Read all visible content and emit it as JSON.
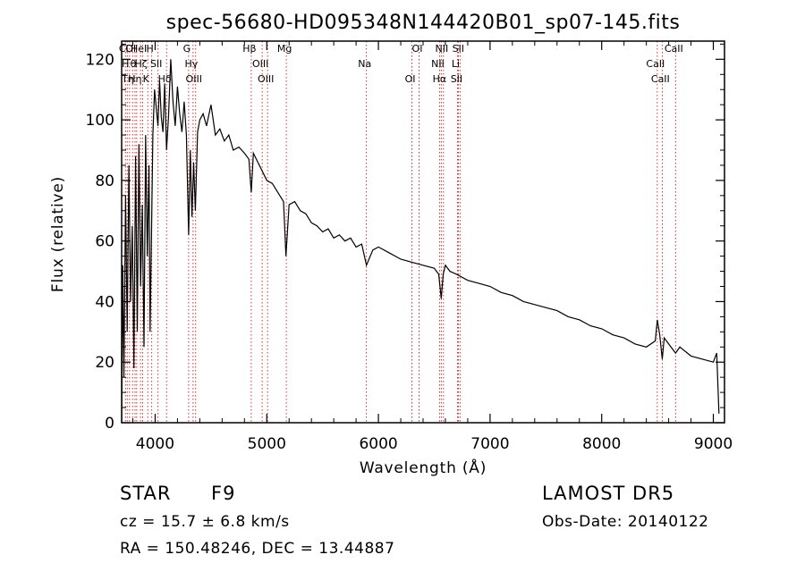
{
  "chart_data": {
    "type": "line",
    "title": "spec-56680-HD095348N144420B01_sp07-145.fits",
    "xlabel": "Wavelength (Å)",
    "ylabel": "Flux (relative)",
    "xlim": [
      3700,
      9100
    ],
    "ylim": [
      0,
      126
    ],
    "xticks": [
      4000,
      5000,
      6000,
      7000,
      8000,
      9000
    ],
    "yticks": [
      0,
      20,
      40,
      60,
      80,
      100,
      120
    ],
    "grid": false,
    "line_color": "#000000",
    "marker_color": "#cc0000",
    "series": [
      {
        "x": [
          3700,
          3710,
          3720,
          3735,
          3750,
          3765,
          3780,
          3795,
          3810,
          3825,
          3840,
          3855,
          3870,
          3885,
          3900,
          3915,
          3930,
          3945,
          3955,
          3968,
          3980,
          3995,
          4010,
          4025,
          4040,
          4055,
          4070,
          4085,
          4102,
          4120,
          4140,
          4160,
          4180,
          4200,
          4220,
          4240,
          4260,
          4280,
          4300,
          4315,
          4330,
          4345,
          4360,
          4380,
          4400,
          4430,
          4460,
          4500,
          4540,
          4580,
          4620,
          4660,
          4700,
          4750,
          4800,
          4840,
          4861,
          4880,
          4920,
          4960,
          5000,
          5050,
          5100,
          5150,
          5172,
          5200,
          5250,
          5300,
          5350,
          5400,
          5450,
          5500,
          5550,
          5600,
          5650,
          5700,
          5750,
          5800,
          5850,
          5893,
          5950,
          6000,
          6100,
          6200,
          6300,
          6400,
          6500,
          6540,
          6563,
          6580,
          6600,
          6640,
          6700,
          6800,
          6900,
          7000,
          7100,
          7200,
          7300,
          7400,
          7500,
          7600,
          7700,
          7800,
          7900,
          8000,
          8100,
          8200,
          8300,
          8400,
          8480,
          8498,
          8520,
          8542,
          8560,
          8600,
          8662,
          8700,
          8800,
          8900,
          9000,
          9030,
          9050
        ],
        "y": [
          0,
          52,
          15,
          75,
          30,
          85,
          40,
          65,
          18,
          88,
          30,
          92,
          45,
          72,
          25,
          95,
          55,
          85,
          30,
          65,
          95,
          110,
          104,
          98,
          113,
          101,
          96,
          112,
          90,
          101,
          120,
          106,
          98,
          111,
          102,
          96,
          106,
          95,
          62,
          90,
          68,
          86,
          70,
          96,
          100,
          102,
          98,
          105,
          95,
          97,
          93,
          95,
          90,
          91,
          89,
          87,
          76,
          89,
          86,
          83,
          80,
          79,
          76,
          73,
          55,
          72,
          73,
          70,
          69,
          66,
          65,
          63,
          64,
          61,
          62,
          60,
          61,
          58,
          59,
          52,
          57,
          58,
          56,
          54,
          53,
          52,
          51,
          49,
          41,
          49,
          52,
          50,
          49,
          47,
          46,
          45,
          43,
          42,
          40,
          39,
          38,
          37,
          35,
          34,
          32,
          31,
          29,
          28,
          26,
          25,
          27,
          34,
          29,
          21,
          28,
          26,
          23,
          25,
          22,
          21,
          20,
          23,
          3
        ]
      }
    ],
    "lines": [
      {
        "x": 3734,
        "label": "Cl"
      },
      {
        "x": 3750,
        "label": "H"
      },
      {
        "x": 3771,
        "label": "Tη"
      },
      {
        "x": 3798,
        "label": "OI"
      },
      {
        "x": 3820,
        "label": "θ"
      },
      {
        "x": 3835,
        "label": "Hη"
      },
      {
        "x": 3869,
        "label": "HeI"
      },
      {
        "x": 3889,
        "label": "Hζ"
      },
      {
        "x": 3934,
        "label": "K"
      },
      {
        "x": 3970,
        "label": "H"
      },
      {
        "x": 4026,
        "label": "SII"
      },
      {
        "x": 4102,
        "label": "Hδ"
      },
      {
        "x": 4300,
        "label": "G"
      },
      {
        "x": 4340,
        "label": "Hγ"
      },
      {
        "x": 4363,
        "label": "OIII"
      },
      {
        "x": 4861,
        "label": "Hβ"
      },
      {
        "x": 4959,
        "label": "OIII"
      },
      {
        "x": 5007,
        "label": "OIII"
      },
      {
        "x": 5175,
        "label": "Mg"
      },
      {
        "x": 5893,
        "label": "Na"
      },
      {
        "x": 6300,
        "label": "OI"
      },
      {
        "x": 6364,
        "label": "OI"
      },
      {
        "x": 6548,
        "label": "NII"
      },
      {
        "x": 6563,
        "label": "Hα"
      },
      {
        "x": 6583,
        "label": "NII"
      },
      {
        "x": 6708,
        "label": "Li"
      },
      {
        "x": 6716,
        "label": "SII"
      },
      {
        "x": 6731,
        "label": "SII"
      },
      {
        "x": 8498,
        "label": "CaII"
      },
      {
        "x": 8542,
        "label": "CaII"
      },
      {
        "x": 8662,
        "label": "CaII"
      }
    ]
  },
  "info": {
    "class": "STAR",
    "subclass": "F9",
    "survey": "LAMOST DR5",
    "cz": "cz = 15.7 ± 6.8 km/s",
    "obs_date": "Obs-Date: 20140122",
    "coords": "RA = 150.48246, DEC =  13.44887"
  }
}
